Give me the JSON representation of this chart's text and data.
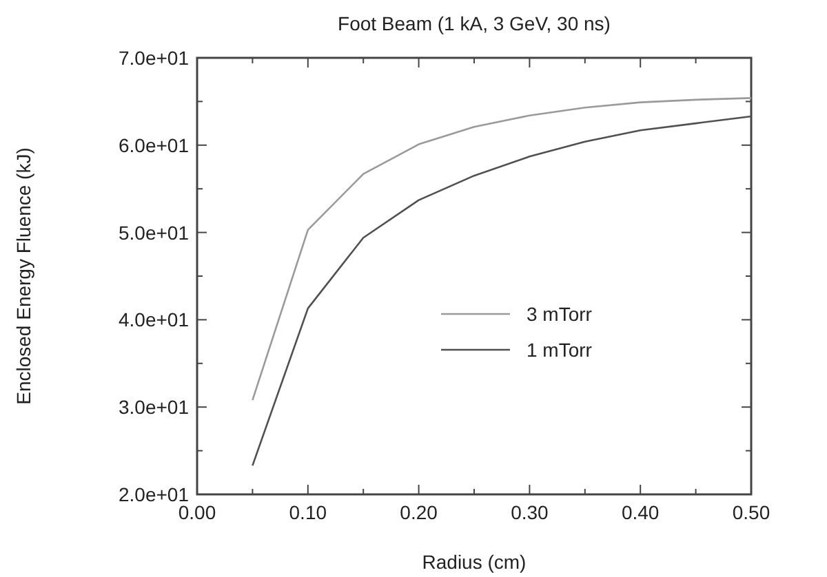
{
  "chart_data": {
    "type": "line",
    "title": "Foot Beam (1 kA, 3 GeV, 30 ns)",
    "xlabel": "Radius (cm)",
    "ylabel": "Enclosed Energy Fluence (kJ)",
    "x": [
      0.05,
      0.1,
      0.15,
      0.2,
      0.25,
      0.3,
      0.35,
      0.4,
      0.45,
      0.5
    ],
    "series": [
      {
        "name": "3 mTorr",
        "color": "#9a9a9a",
        "values": [
          30.8,
          50.3,
          56.7,
          60.1,
          62.1,
          63.4,
          64.3,
          64.9,
          65.2,
          65.4
        ]
      },
      {
        "name": "1 mTorr",
        "color": "#505050",
        "values": [
          23.3,
          41.3,
          49.4,
          53.7,
          56.5,
          58.7,
          60.4,
          61.7,
          62.5,
          63.3
        ]
      }
    ],
    "xlim": [
      0,
      0.5
    ],
    "ylim": [
      20,
      70
    ],
    "xticks": [
      {
        "value": 0,
        "label": "0.00"
      },
      {
        "value": 0.05,
        "label": null
      },
      {
        "value": 0.1,
        "label": "0.10"
      },
      {
        "value": 0.15,
        "label": null
      },
      {
        "value": 0.2,
        "label": "0.20"
      },
      {
        "value": 0.25,
        "label": null
      },
      {
        "value": 0.3,
        "label": "0.30"
      },
      {
        "value": 0.35,
        "label": null
      },
      {
        "value": 0.4,
        "label": "0.40"
      },
      {
        "value": 0.45,
        "label": null
      },
      {
        "value": 0.5,
        "label": "0.50"
      }
    ],
    "yticks": [
      {
        "value": 20,
        "label": "2.0e+01"
      },
      {
        "value": 25,
        "label": null
      },
      {
        "value": 30,
        "label": "3.0e+01"
      },
      {
        "value": 35,
        "label": null
      },
      {
        "value": 40,
        "label": "4.0e+01"
      },
      {
        "value": 45,
        "label": null
      },
      {
        "value": 50,
        "label": "5.0e+01"
      },
      {
        "value": 55,
        "label": null
      },
      {
        "value": 60,
        "label": "6.0e+01"
      },
      {
        "value": 65,
        "label": null
      },
      {
        "value": 70,
        "label": "7.0e+01"
      }
    ],
    "legend": "center",
    "grid": false,
    "line_style": "solid",
    "marker": "none"
  }
}
